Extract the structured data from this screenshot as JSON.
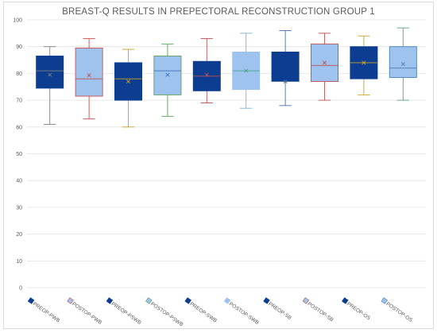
{
  "chart_data": {
    "type": "box",
    "title": "BREAST-Q RESULTS IN PREPECTORAL RECONSTRUCTION GROUP 1",
    "xlabel": "",
    "ylabel": "",
    "ylim": [
      0,
      100
    ],
    "yticks": [
      0,
      10,
      20,
      30,
      40,
      50,
      60,
      70,
      80,
      90,
      100
    ],
    "grid": true,
    "legend_position": "bottom",
    "series": [
      {
        "name": "PREOP-PWB",
        "min": 61,
        "q1": 74.5,
        "median": 81,
        "q3": 86.5,
        "max": 90,
        "mean": 79.5,
        "fill": "#0c3d91",
        "stroke": "#0c3d91",
        "whisker": "#7f7f7f",
        "marker": "#7f7f7f"
      },
      {
        "name": "POSTOP-PWB",
        "min": 63,
        "q1": 71.5,
        "median": 78,
        "q3": 89.5,
        "max": 93,
        "mean": 79.3,
        "fill": "#9fc3ef",
        "stroke": "#d64c4c",
        "whisker": "#d64c4c",
        "marker": "#c0504d"
      },
      {
        "name": "PREOP-PSWB",
        "min": 60,
        "q1": 70,
        "median": 78,
        "q3": 84,
        "max": 89,
        "mean": 77,
        "fill": "#0c3d91",
        "stroke": "#0c3d91",
        "whisker": "#c9a227",
        "marker": "#c9a227"
      },
      {
        "name": "POSTOP-PSWB",
        "min": 64,
        "q1": 72,
        "median": 81,
        "q3": 86.5,
        "max": 91,
        "mean": 79.5,
        "fill": "#9fc3ef",
        "stroke": "#5a9e5a",
        "whisker": "#5a9e5a",
        "marker": "#3b6fb6"
      },
      {
        "name": "PREOP-SWB",
        "min": 69,
        "q1": 73.5,
        "median": 79,
        "q3": 84.5,
        "max": 93,
        "mean": 79.5,
        "fill": "#0c3d91",
        "stroke": "#0c3d91",
        "whisker": "#c0504d",
        "marker": "#c0504d"
      },
      {
        "name": "POSTOP-SWB",
        "min": 67,
        "q1": 74,
        "median": 81,
        "q3": 88,
        "max": 95,
        "mean": 81,
        "fill": "#9fc3ef",
        "stroke": "#9fc3ef",
        "whisker": "#7fb0d9",
        "marker": "#4aa58c"
      },
      {
        "name": "PREOP-SB",
        "min": 68,
        "q1": 77,
        "median": 77,
        "q3": 88,
        "max": 96,
        "mean": 77,
        "fill": "#0c3d91",
        "stroke": "#0c3d91",
        "whisker": "#4a6fa5",
        "marker": "#4a6fa5"
      },
      {
        "name": "POSTOP-SB",
        "min": 70,
        "q1": 77,
        "median": 83,
        "q3": 91,
        "max": 95,
        "mean": 84,
        "fill": "#9fc3ef",
        "stroke": "#c0504d",
        "whisker": "#c0504d",
        "marker": "#c0504d"
      },
      {
        "name": "PREOP-OS",
        "min": 72,
        "q1": 78,
        "median": 84,
        "q3": 90,
        "max": 94,
        "mean": 84,
        "fill": "#0c3d91",
        "stroke": "#0c3d91",
        "whisker": "#c9a227",
        "marker": "#c9a227"
      },
      {
        "name": "POSTOP-OS",
        "min": 70,
        "q1": 78.5,
        "median": 82,
        "q3": 90,
        "max": 97,
        "mean": 83.5,
        "fill": "#9fc3ef",
        "stroke": "#4a7fb0",
        "whisker": "#5a9e8a",
        "marker": "#4a7fb0"
      }
    ]
  }
}
